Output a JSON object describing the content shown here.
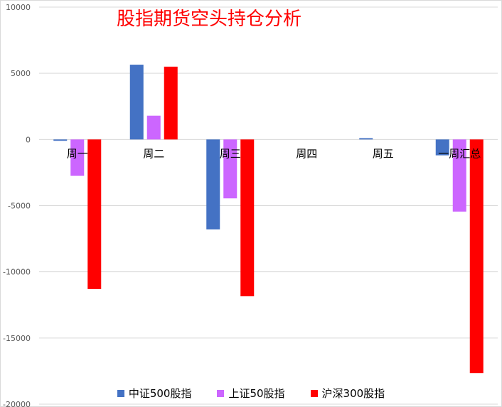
{
  "chart_data": {
    "type": "bar",
    "title": "股指期货空头持仓分析",
    "categories": [
      "周一",
      "周二",
      "周三",
      "周四",
      "周五",
      "一周汇总"
    ],
    "ylim": [
      -20000,
      10000
    ],
    "yticks": [
      10000,
      5000,
      0,
      -5000,
      -10000,
      -15000,
      -20000
    ],
    "grid": true,
    "legend_position": "bottom",
    "series": [
      {
        "name": "中证500股指",
        "color": "#4472c4",
        "values": [
          -100,
          5650,
          -6800,
          0,
          100,
          -1200
        ]
      },
      {
        "name": "上证50股指",
        "color": "#cc66ff",
        "values": [
          -2750,
          1800,
          -4450,
          0,
          0,
          -5450
        ]
      },
      {
        "name": "沪深300股指",
        "color": "#ff0000",
        "values": [
          -11300,
          5500,
          -11850,
          0,
          0,
          -17650
        ]
      }
    ]
  }
}
